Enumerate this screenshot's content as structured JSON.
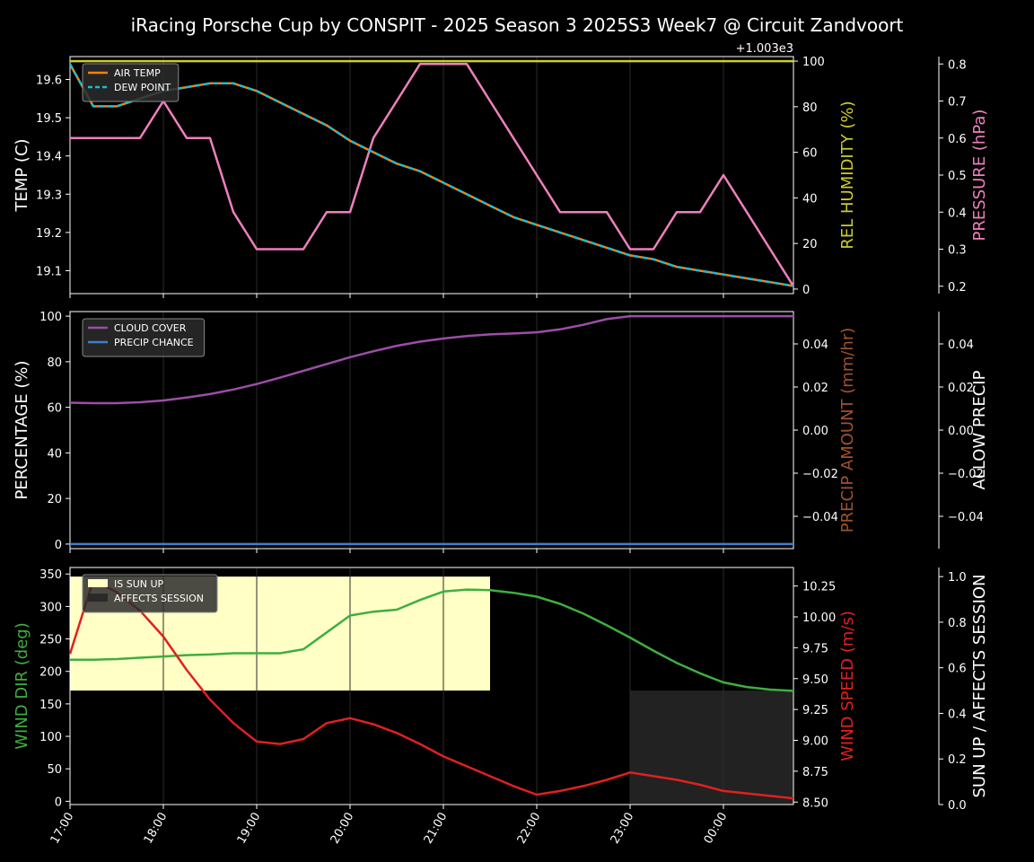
{
  "chart_data": {
    "title": "iRacing Porsche Cup by CONSPIT - 2025 Season 3 2025S3 Week7 @ Circuit Zandvoort",
    "type": "line",
    "x": [
      "17:00",
      "17:15",
      "17:30",
      "17:45",
      "18:00",
      "18:15",
      "18:30",
      "18:45",
      "19:00",
      "19:15",
      "19:30",
      "19:45",
      "20:00",
      "20:15",
      "20:30",
      "20:45",
      "21:00",
      "21:15",
      "21:30",
      "21:45",
      "22:00",
      "22:15",
      "22:30",
      "22:45",
      "23:00",
      "23:15",
      "23:30",
      "23:45",
      "00:00",
      "00:15",
      "00:30",
      "00:45"
    ],
    "xticks": [
      "17:00",
      "18:00",
      "19:00",
      "20:00",
      "21:00",
      "22:00",
      "23:00",
      "00:00"
    ],
    "panels": [
      {
        "id": "temps",
        "ylabel": "TEMP (C)",
        "ylim": [
          19.04,
          19.66
        ],
        "yticks": [
          "19.1",
          "19.2",
          "19.3",
          "19.4",
          "19.5",
          "19.6"
        ],
        "legend": [
          {
            "label": "AIR TEMP",
            "color": "#ff7f0e",
            "dash": false
          },
          {
            "label": "DEW POINT",
            "color": "#17becf",
            "dash": true
          }
        ],
        "series": [
          {
            "name": "AIR TEMP",
            "color": "#ff7f0e",
            "values": [
              19.64,
              19.53,
              19.53,
              19.55,
              19.57,
              19.58,
              19.59,
              19.59,
              19.57,
              19.54,
              19.51,
              19.48,
              19.44,
              19.41,
              19.38,
              19.36,
              19.33,
              19.3,
              19.27,
              19.24,
              19.22,
              19.2,
              19.18,
              19.16,
              19.14,
              19.13,
              19.11,
              19.1,
              19.09,
              19.08,
              19.07,
              19.06
            ]
          },
          {
            "name": "DEW POINT",
            "color": "#17becf",
            "dash": true,
            "values": [
              19.64,
              19.53,
              19.53,
              19.55,
              19.57,
              19.58,
              19.59,
              19.59,
              19.57,
              19.54,
              19.51,
              19.48,
              19.44,
              19.41,
              19.38,
              19.36,
              19.33,
              19.3,
              19.27,
              19.24,
              19.22,
              19.2,
              19.18,
              19.16,
              19.14,
              19.13,
              19.11,
              19.1,
              19.09,
              19.08,
              19.07,
              19.06
            ]
          }
        ],
        "right1": {
          "ylabel": "REL HUMIDITY (%)",
          "color": "#cccc33",
          "ylim": [
            -2,
            102
          ],
          "yticks": [
            "0",
            "20",
            "40",
            "60",
            "80",
            "100"
          ],
          "values": [
            100,
            100,
            100,
            100,
            100,
            100,
            100,
            100,
            100,
            100,
            100,
            100,
            100,
            100,
            100,
            100,
            100,
            100,
            100,
            100,
            100,
            100,
            100,
            100,
            100,
            100,
            100,
            100,
            100,
            100,
            100,
            100
          ]
        },
        "right2": {
          "ylabel": "PRESSURE (hPa)",
          "color": "#ef7fbe",
          "ylim": [
            0.18,
            0.82
          ],
          "yticks": [
            "0.2",
            "0.3",
            "0.4",
            "0.5",
            "0.6",
            "0.7",
            "0.8"
          ],
          "offset_label": "+1.003e3",
          "values": [
            0.6,
            0.6,
            0.6,
            0.6,
            0.7,
            0.6,
            0.6,
            0.4,
            0.3,
            0.3,
            0.3,
            0.4,
            0.4,
            0.6,
            0.7,
            0.8,
            0.8,
            0.8,
            0.7,
            0.6,
            0.5,
            0.4,
            0.4,
            0.4,
            0.3,
            0.3,
            0.4,
            0.4,
            0.5,
            0.4,
            0.3,
            0.2
          ]
        }
      },
      {
        "id": "clouds",
        "ylabel": "PERCENTAGE (%)",
        "ylim": [
          -2,
          102
        ],
        "yticks": [
          "0",
          "20",
          "40",
          "60",
          "80",
          "100"
        ],
        "legend": [
          {
            "label": "CLOUD COVER",
            "color": "#9b4ea6",
            "dash": false
          },
          {
            "label": "PRECIP CHANCE",
            "color": "#3f7fc7",
            "dash": false
          }
        ],
        "series": [
          {
            "name": "CLOUD COVER",
            "color": "#9b4ea6",
            "values": [
              62,
              61.8,
              61.8,
              62.2,
              63,
              64.3,
              65.8,
              67.8,
              70.2,
              73,
              76,
              79,
              82,
              84.6,
              87,
              88.8,
              90.2,
              91.3,
              92,
              92.4,
              92.9,
              94.2,
              96.2,
              98.7,
              100,
              100,
              100,
              100,
              100,
              100,
              100,
              100
            ]
          },
          {
            "name": "PRECIP CHANCE",
            "color": "#3f7fc7",
            "values": [
              0,
              0,
              0,
              0,
              0,
              0,
              0,
              0,
              0,
              0,
              0,
              0,
              0,
              0,
              0,
              0,
              0,
              0,
              0,
              0,
              0,
              0,
              0,
              0,
              0,
              0,
              0,
              0,
              0,
              0,
              0,
              0
            ]
          }
        ],
        "right1": {
          "ylabel": "PRECIP AMOUNT (mm/hr)",
          "color": "#a0522d",
          "ylim": [
            -0.055,
            0.055
          ],
          "yticks": [
            "−0.04",
            "−0.02",
            "0.00",
            "0.02",
            "0.04"
          ]
        },
        "right2": {
          "ylabel": "ALLOW PRECIP",
          "color": "#ffffff",
          "ylim": [
            -0.055,
            0.055
          ],
          "yticks": [
            "−0.04",
            "−0.02",
            "0.00",
            "0.02",
            "0.04"
          ]
        }
      },
      {
        "id": "wind",
        "ylabel": "WIND DIR (deg)",
        "ylabel_color": "#3fae3f",
        "ylim": [
          -5,
          360
        ],
        "yticks": [
          "0",
          "50",
          "100",
          "150",
          "200",
          "250",
          "300",
          "350"
        ],
        "legend": [
          {
            "label": "IS SUN UP",
            "color": "#ffffc6",
            "box": true
          },
          {
            "label": "AFFECTS SESSION",
            "color": "#2a2a2a",
            "box": true
          }
        ],
        "sun_up": {
          "from": "17:00",
          "to": "21:30",
          "level": 1.0
        },
        "affects_session": {
          "from": "23:00",
          "to": "00:45",
          "level": 0.5
        },
        "series": [
          {
            "name": "WIND DIR",
            "color": "#3fae3f",
            "values": [
              218,
              218,
              219,
              221,
              223,
              225,
              226,
              228,
              228,
              228,
              234,
              260,
              286,
              292,
              295,
              310,
              323,
              326,
              325,
              321,
              315,
              304,
              289,
              271,
              252,
              232,
              213,
              197,
              183,
              176,
              172,
              170
            ]
          },
          {
            "name": "WIND SPEED",
            "color": "#e02020",
            "axis": "right1",
            "values": [
              9.7,
              10.3,
              10.2,
              10.05,
              9.84,
              9.57,
              9.33,
              9.14,
              8.99,
              8.97,
              9.01,
              9.14,
              9.18,
              9.13,
              9.06,
              8.97,
              8.87,
              8.79,
              8.71,
              8.63,
              8.56,
              8.59,
              8.63,
              8.68,
              8.74,
              8.71,
              8.68,
              8.64,
              8.59,
              8.57,
              8.55,
              8.53
            ]
          }
        ],
        "right1": {
          "ylabel": "WIND SPEED (m/s)",
          "color": "#e02020",
          "ylim": [
            8.48,
            10.4
          ],
          "yticks": [
            "8.50",
            "8.75",
            "9.00",
            "9.25",
            "9.50",
            "9.75",
            "10.00",
            "10.25"
          ]
        },
        "right2": {
          "ylabel": "SUN UP / AFFECTS SESSION",
          "color": "#ffffff",
          "ylim": [
            0,
            1.04
          ],
          "yticks": [
            "0.0",
            "0.2",
            "0.4",
            "0.6",
            "0.8",
            "1.0"
          ]
        }
      }
    ]
  }
}
